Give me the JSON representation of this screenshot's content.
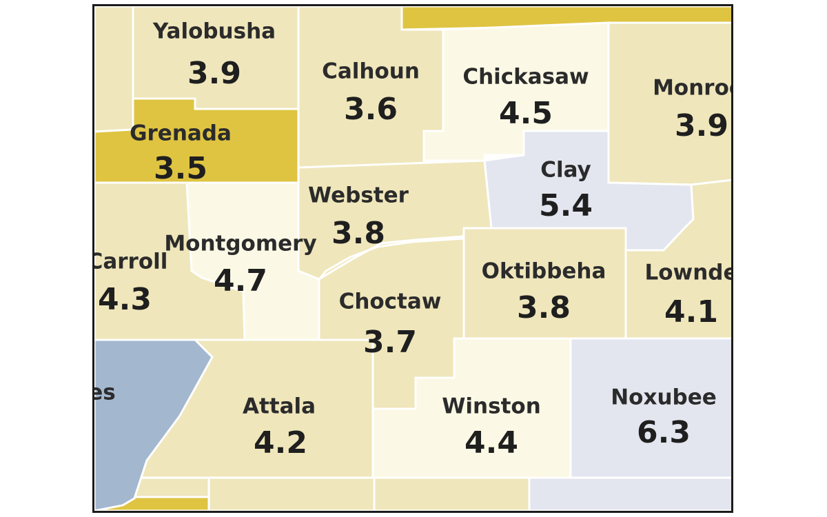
{
  "map": {
    "colors": {
      "beige": "#efe6bb",
      "gold": "#dfc442",
      "cream": "#fbf9e5",
      "lavender": "#e3e6ef",
      "steel_blue": "#a3b7cf",
      "border": "#ffffff",
      "frame": "#1b1b1b"
    },
    "counties": [
      {
        "name": "Yalobusha",
        "value": "3.9",
        "fill": "beige"
      },
      {
        "name": "Calhoun",
        "value": "3.6",
        "fill": "beige"
      },
      {
        "name": "Chickasaw",
        "value": "4.5",
        "fill": "cream"
      },
      {
        "name": "Monroe",
        "value": "3.9",
        "fill": "beige"
      },
      {
        "name": "Grenada",
        "value": "3.5",
        "fill": "gold"
      },
      {
        "name": "Clay",
        "value": "5.4",
        "fill": "lavender"
      },
      {
        "name": "Webster",
        "value": "3.8",
        "fill": "beige"
      },
      {
        "name": "Montgomery",
        "value": "4.7",
        "fill": "cream"
      },
      {
        "name": "Carroll",
        "value": "4.3",
        "fill": "beige"
      },
      {
        "name": "Oktibbeha",
        "value": "3.8",
        "fill": "beige"
      },
      {
        "name": "Lownde",
        "value": "4.1",
        "fill": "beige"
      },
      {
        "name": "Choctaw",
        "value": "3.7",
        "fill": "beige"
      },
      {
        "name": "Attala",
        "value": "4.2",
        "fill": "beige"
      },
      {
        "name": "Winston",
        "value": "4.4",
        "fill": "cream"
      },
      {
        "name": "Noxubee",
        "value": "6.3",
        "fill": "lavender"
      },
      {
        "name": "es",
        "value": "",
        "fill": "steel_blue"
      }
    ]
  }
}
